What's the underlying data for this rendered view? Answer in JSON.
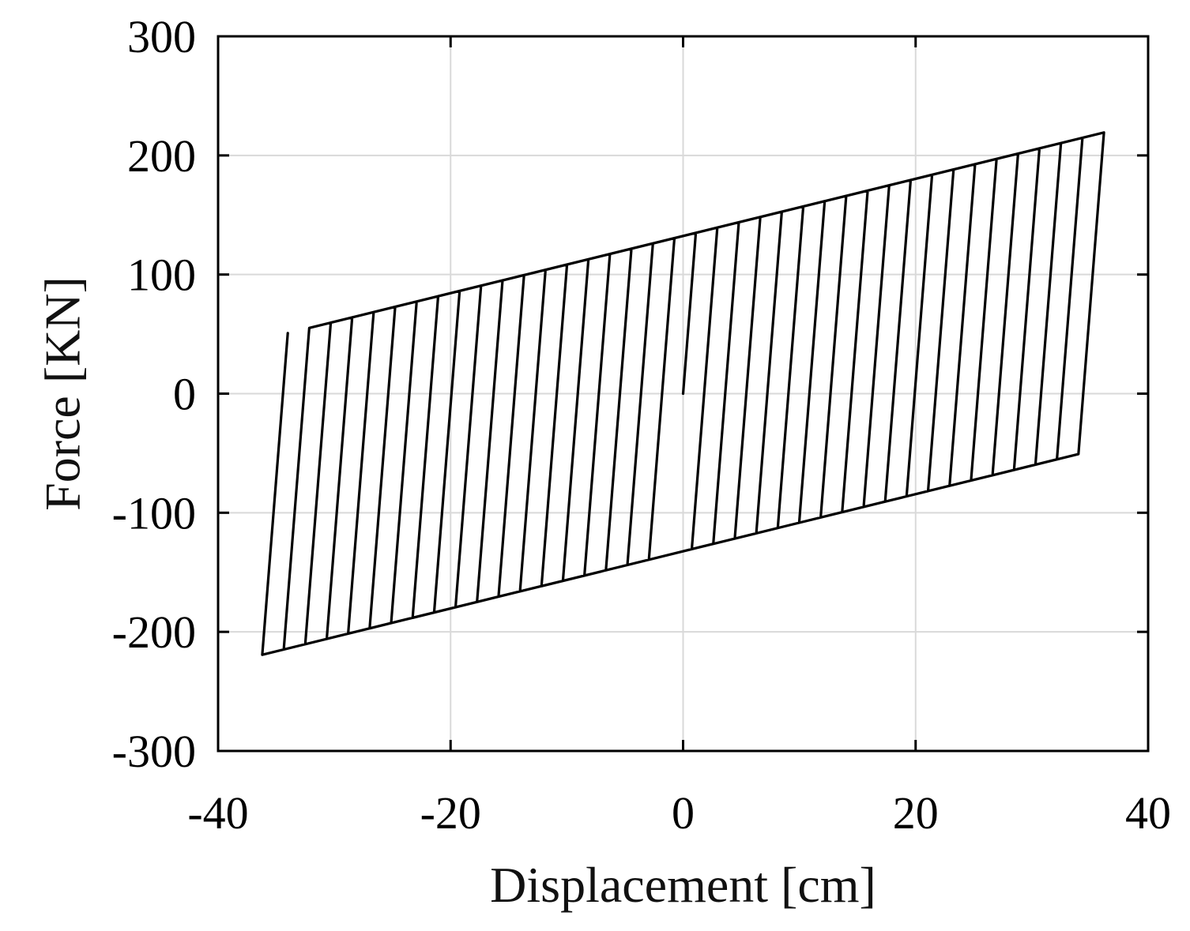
{
  "chart_data": {
    "type": "line",
    "xlabel": "Displacement [cm]",
    "ylabel": "Force [KN]",
    "xlim": [
      -40,
      40
    ],
    "ylim": [
      -300,
      300
    ],
    "xticks": [
      -40,
      -20,
      0,
      20,
      40
    ],
    "yticks": [
      300,
      200,
      100,
      0,
      -100,
      -200,
      -300
    ],
    "grid": true,
    "legend": "none",
    "series": [
      {
        "model": "bilinear-hysteresis",
        "elastic_stiffness_kN_per_cm": 123,
        "yield_force_kN": 135,
        "post_yield_stiffness_kN_per_cm": 2.4,
        "max_displacement_cm": 36.2,
        "cycles": 19,
        "points": [
          [
            0.0,
            0.0
          ],
          [
            1.2,
            135.0
          ],
          [
            36.2,
            216.0
          ],
          [
            35.4,
            118.0
          ],
          [
            0.0,
            35.0
          ],
          [
            -0.8,
            -37.0
          ],
          [
            -1.2,
            -135.0
          ],
          [
            -36.2,
            -216.0
          ],
          [
            -35.4,
            -118.0
          ],
          [
            0.0,
            -35.0
          ],
          [
            0.8,
            37.0
          ],
          [
            1.2,
            135.0
          ]
        ]
      }
    ]
  }
}
